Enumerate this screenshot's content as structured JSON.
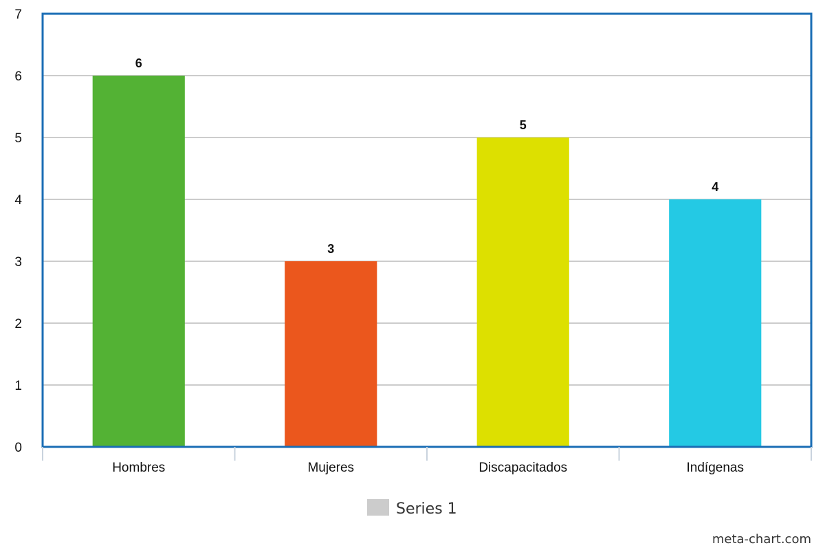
{
  "chart_data": {
    "type": "bar",
    "categories": [
      "Hombres",
      "Mujeres",
      "Discapacitados",
      "Indígenas"
    ],
    "series": [
      {
        "name": "Series 1",
        "values": [
          6,
          3,
          5,
          4
        ],
        "colors": [
          "#53b234",
          "#eb571d",
          "#dde000",
          "#24c9e4"
        ]
      }
    ],
    "ylim": [
      0,
      7
    ],
    "yticks": [
      0,
      1,
      2,
      3,
      4,
      5,
      6,
      7
    ],
    "grid": true,
    "legend_position": "bottom-center",
    "legend_color": "#cccccc",
    "frame_color": "#1a6db5",
    "grid_color": "#bbbbbb"
  },
  "watermark": "meta-chart.com"
}
